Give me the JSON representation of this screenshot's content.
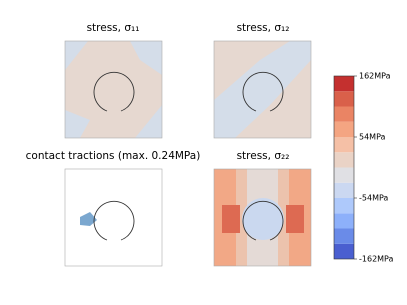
{
  "panels": [
    {
      "title": "stress, σ₁₁"
    },
    {
      "title": "stress, σ₁₂"
    },
    {
      "title": "contact tractions (max. 0.24MPa)"
    },
    {
      "title": "stress, σ₂₂"
    }
  ],
  "colorbar": {
    "ylim": [
      -162,
      162
    ],
    "levels": [
      -162,
      -135,
      -108,
      -81,
      -54,
      -27,
      0,
      27,
      54,
      81,
      108,
      135,
      162
    ],
    "colors": [
      "#4a5fd0",
      "#6a8be8",
      "#8db0fa",
      "#aec9fb",
      "#cbd8f1",
      "#e0e0e4",
      "#ead3c6",
      "#f5c0a6",
      "#f4a582",
      "#ea8464",
      "#d9604a",
      "#c4302f"
    ],
    "yticks": [
      {
        "value": 162,
        "label": "162MPa"
      },
      {
        "value": 54,
        "label": "54MPa"
      },
      {
        "value": -54,
        "label": "-54MPa"
      },
      {
        "value": -162,
        "label": "-162MPa"
      }
    ]
  }
}
